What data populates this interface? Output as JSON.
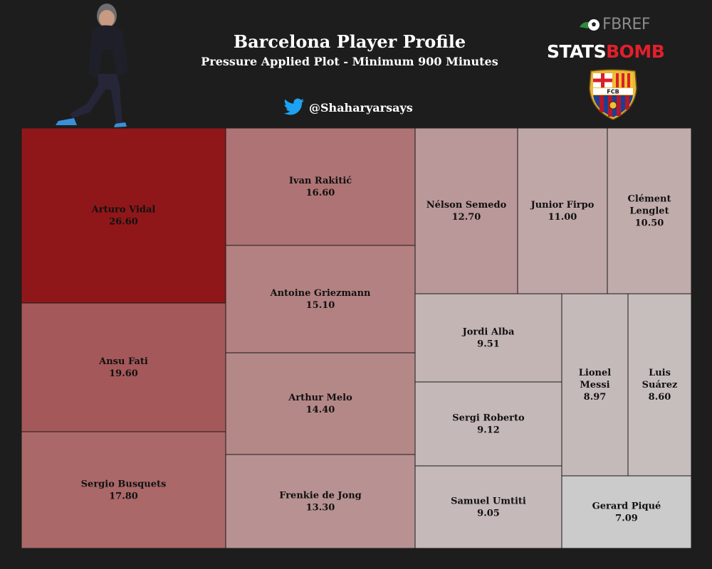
{
  "header": {
    "title": "Barcelona Player Profile",
    "subtitle": "Pressure Applied Plot - Minimum 900 Minutes",
    "twitter_handle": "@Shaharyarsays",
    "fbref_logo": "FBREF",
    "statsbomb_logo_stats": "STATS",
    "statsbomb_logo_bomb": "BOMB",
    "crest_text": "FCB"
  },
  "colors": {
    "background": "#1d1d1d",
    "max_cell": "#901719",
    "min_cell": "#cbcbcb",
    "text": "#111111",
    "twitter_blue": "#1da1f2",
    "statsbomb_red": "#e0202b"
  },
  "chart_data": {
    "type": "treemap",
    "title": "Barcelona Player Profile",
    "subtitle": "Pressure Applied Plot - Minimum 900 Minutes",
    "items": [
      {
        "name": "Arturo Vidal",
        "value": "26.60"
      },
      {
        "name": "Ansu Fati",
        "value": "19.60"
      },
      {
        "name": "Sergio Busquets",
        "value": "17.80"
      },
      {
        "name": "Ivan Rakitić",
        "value": "16.60"
      },
      {
        "name": "Antoine Griezmann",
        "value": "15.10"
      },
      {
        "name": "Arthur Melo",
        "value": "14.40"
      },
      {
        "name": "Frenkie de Jong",
        "value": "13.30"
      },
      {
        "name": "Nélson Semedo",
        "value": "12.70"
      },
      {
        "name": "Junior Firpo",
        "value": "11.00"
      },
      {
        "name": "Clément Lenglet",
        "value": "10.50"
      },
      {
        "name": "Jordi Alba",
        "value": "9.51"
      },
      {
        "name": "Sergi Roberto",
        "value": "9.12"
      },
      {
        "name": "Samuel Umtiti",
        "value": "9.05"
      },
      {
        "name": "Lionel Messi",
        "value": "8.97"
      },
      {
        "name": "Luis Suárez",
        "value": "8.60"
      },
      {
        "name": "Gerard Piqué",
        "value": "7.09"
      }
    ]
  }
}
